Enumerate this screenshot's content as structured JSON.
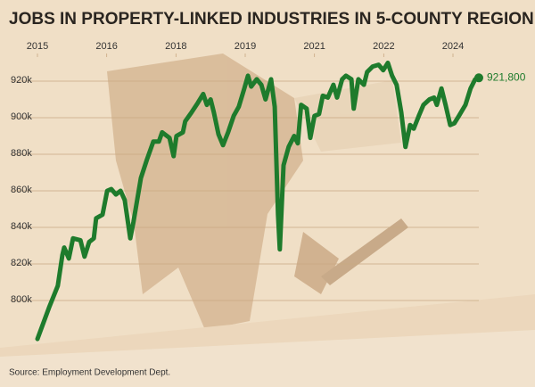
{
  "chart_data": {
    "type": "line",
    "title": "JOBS IN PROPERTY-LINKED INDUSTRIES IN 5-COUNTY REGION",
    "source": "Source: Employment Development Dept.",
    "xlim": [
      2015,
      2024.56
    ],
    "xticks": [
      2015,
      {
        "value": 2016.5,
        "label": "2016"
      },
      2018,
      {
        "value": 2019.5,
        "label": "2019"
      },
      2021,
      {
        "value": 2022.5,
        "label": "2022"
      },
      2024
    ],
    "ylim": [
      775000,
      934000
    ],
    "yticks": [
      {
        "value": 800000,
        "label": "800k"
      },
      {
        "value": 820000,
        "label": "820k"
      },
      {
        "value": 840000,
        "label": "840k"
      },
      {
        "value": 860000,
        "label": "860k"
      },
      {
        "value": 880000,
        "label": "880k"
      },
      {
        "value": 900000,
        "label": "900k"
      },
      {
        "value": 920000,
        "label": "920k"
      }
    ],
    "grid": true,
    "series": [
      {
        "color": "#1e7b2c",
        "x": [
          2015.0,
          2015.25,
          2015.44,
          2015.54,
          2015.58,
          2015.68,
          2015.77,
          2015.93,
          2016.02,
          2016.12,
          2016.22,
          2016.27,
          2016.41,
          2016.51,
          2016.6,
          2016.7,
          2016.8,
          2016.89,
          2017.01,
          2017.08,
          2017.24,
          2017.37,
          2017.51,
          2017.63,
          2017.7,
          2017.86,
          2017.95,
          2018.01,
          2018.15,
          2018.2,
          2018.34,
          2018.47,
          2018.59,
          2018.67,
          2018.75,
          2018.82,
          2018.92,
          2019.02,
          2019.13,
          2019.25,
          2019.36,
          2019.48,
          2019.56,
          2019.63,
          2019.75,
          2019.85,
          2019.94,
          2020.06,
          2020.14,
          2020.21,
          2020.25,
          2020.33,
          2020.44,
          2020.56,
          2020.64,
          2020.71,
          2020.83,
          2020.91,
          2021.0,
          2021.1,
          2021.18,
          2021.29,
          2021.41,
          2021.49,
          2021.6,
          2021.68,
          2021.8,
          2021.85,
          2021.95,
          2022.07,
          2022.14,
          2022.26,
          2022.39,
          2022.49,
          2022.59,
          2022.68,
          2022.78,
          2022.88,
          2022.97,
          2023.07,
          2023.15,
          2023.26,
          2023.36,
          2023.49,
          2023.59,
          2023.65,
          2023.75,
          2023.84,
          2023.94,
          2024.03,
          2024.13,
          2024.27,
          2024.38,
          2024.48,
          2024.56
        ],
        "values": [
          779000,
          796000,
          808000,
          825000,
          829000,
          823000,
          834000,
          833000,
          824000,
          832000,
          834000,
          845000,
          847000,
          860000,
          861000,
          858000,
          860000,
          855000,
          834000,
          843000,
          867000,
          877000,
          887000,
          887000,
          892000,
          889000,
          879000,
          890000,
          892000,
          898000,
          903000,
          908000,
          913000,
          907000,
          910000,
          903000,
          891000,
          885000,
          892000,
          901000,
          906000,
          916000,
          923000,
          917000,
          921000,
          918000,
          910000,
          921000,
          906000,
          847000,
          828000,
          874000,
          884000,
          890000,
          886000,
          907000,
          905000,
          889000,
          901000,
          902000,
          912000,
          911000,
          918000,
          911000,
          921000,
          923000,
          921000,
          905000,
          921000,
          918000,
          925000,
          928000,
          929000,
          926000,
          930000,
          923000,
          918000,
          903000,
          884000,
          896000,
          894000,
          901000,
          907000,
          910000,
          911000,
          907000,
          916000,
          907000,
          896000,
          897000,
          901000,
          907000,
          916000,
          921000,
          921800
        ],
        "value_labels": [
          null,
          null,
          null,
          null,
          null,
          null,
          null,
          null,
          null,
          null,
          null,
          null,
          null,
          null,
          null,
          null,
          null,
          null,
          null,
          null,
          null,
          null,
          null,
          null,
          null,
          null,
          null,
          null,
          null,
          null,
          null,
          null,
          null,
          null,
          null,
          null,
          null,
          null,
          null,
          null,
          null,
          null,
          null,
          null,
          null,
          null,
          null,
          null,
          null,
          null,
          null,
          null,
          null,
          null,
          null,
          null,
          null,
          null,
          null,
          null,
          null,
          null,
          null,
          null,
          null,
          null,
          null,
          null,
          null,
          null,
          null,
          null,
          null,
          null,
          null,
          null,
          null,
          null,
          null,
          null,
          null,
          null,
          null,
          null,
          null,
          null,
          null,
          null,
          null,
          null,
          null,
          null,
          null,
          null,
          "921,800"
        ]
      }
    ]
  }
}
